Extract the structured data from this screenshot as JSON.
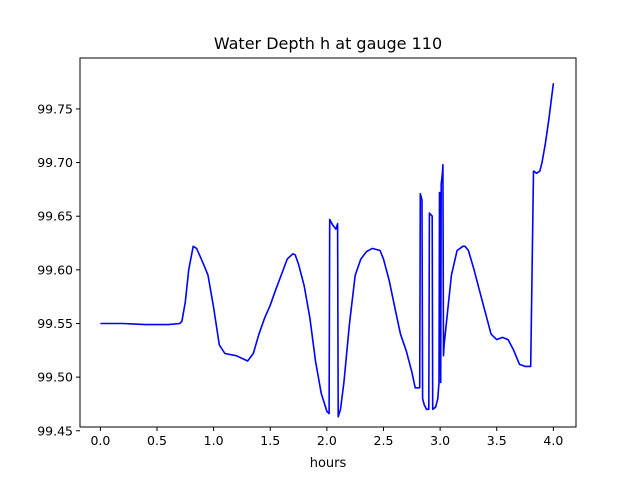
{
  "chart_data": {
    "type": "line",
    "title": "Water Depth h at gauge 110",
    "xlabel": "hours",
    "ylabel": "",
    "xlim": [
      -0.18,
      4.2
    ],
    "ylim": [
      99.4535,
      99.7975
    ],
    "xticks": [
      0.0,
      0.5,
      1.0,
      1.5,
      2.0,
      2.5,
      3.0,
      3.5,
      4.0
    ],
    "xtick_labels": [
      "0.0",
      "0.5",
      "1.0",
      "1.5",
      "2.0",
      "2.5",
      "3.0",
      "3.5",
      "4.0"
    ],
    "yticks": [
      99.45,
      99.5,
      99.55,
      99.6,
      99.65,
      99.7,
      99.75
    ],
    "ytick_labels": [
      "99.45",
      "99.50",
      "99.55",
      "99.60",
      "99.65",
      "99.70",
      "99.75"
    ],
    "grid": false,
    "series": [
      {
        "color": "#0000ff",
        "x": [
          0.0,
          0.2,
          0.4,
          0.6,
          0.7,
          0.72,
          0.75,
          0.78,
          0.82,
          0.85,
          0.9,
          0.95,
          1.0,
          1.05,
          1.1,
          1.2,
          1.3,
          1.35,
          1.4,
          1.45,
          1.5,
          1.55,
          1.6,
          1.65,
          1.7,
          1.72,
          1.75,
          1.8,
          1.85,
          1.9,
          1.95,
          2.0,
          2.02,
          2.025,
          2.05,
          2.08,
          2.095,
          2.1,
          2.12,
          2.15,
          2.2,
          2.25,
          2.3,
          2.35,
          2.4,
          2.47,
          2.5,
          2.55,
          2.6,
          2.65,
          2.7,
          2.75,
          2.78,
          2.82,
          2.825,
          2.84,
          2.845,
          2.86,
          2.88,
          2.9,
          2.905,
          2.93,
          2.935,
          2.96,
          2.98,
          2.99,
          2.995,
          3.0,
          3.005,
          3.01,
          3.02,
          3.025,
          3.03,
          3.035,
          3.06,
          3.1,
          3.15,
          3.2,
          3.22,
          3.25,
          3.3,
          3.35,
          3.4,
          3.45,
          3.5,
          3.55,
          3.6,
          3.65,
          3.7,
          3.75,
          3.8,
          3.825,
          3.83,
          3.85,
          3.88,
          3.9,
          3.93,
          3.96,
          4.0
        ],
        "y": [
          99.55,
          99.55,
          99.549,
          99.549,
          99.55,
          99.552,
          99.57,
          99.6,
          99.622,
          99.62,
          99.608,
          99.595,
          99.565,
          99.53,
          99.522,
          99.52,
          99.515,
          99.522,
          99.54,
          99.555,
          99.567,
          99.582,
          99.596,
          99.61,
          99.615,
          99.614,
          99.605,
          99.585,
          99.555,
          99.515,
          99.485,
          99.468,
          99.466,
          99.647,
          99.642,
          99.638,
          99.643,
          99.463,
          99.47,
          99.495,
          99.55,
          99.595,
          99.61,
          99.617,
          99.62,
          99.618,
          99.61,
          99.59,
          99.565,
          99.54,
          99.525,
          99.505,
          99.49,
          99.49,
          99.671,
          99.665,
          99.48,
          99.474,
          99.47,
          99.47,
          99.653,
          99.65,
          99.47,
          99.472,
          99.48,
          99.495,
          99.672,
          99.672,
          99.495,
          99.68,
          99.69,
          99.698,
          99.52,
          99.53,
          99.555,
          99.595,
          99.618,
          99.622,
          99.622,
          99.618,
          99.6,
          99.58,
          99.56,
          99.54,
          99.535,
          99.537,
          99.535,
          99.525,
          99.512,
          99.51,
          99.51,
          99.692,
          99.692,
          99.69,
          99.692,
          99.7,
          99.718,
          99.74,
          99.774
        ]
      }
    ]
  }
}
